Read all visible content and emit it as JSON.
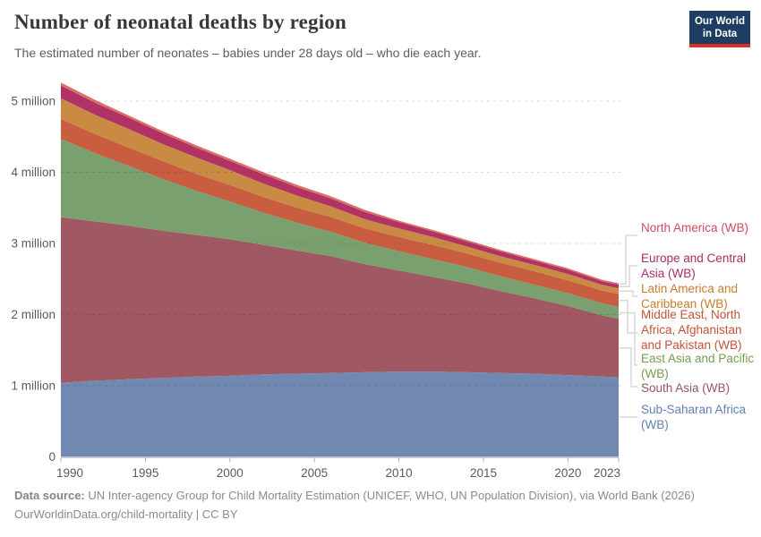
{
  "header": {
    "title": "Number of neonatal deaths by region",
    "subtitle": "The estimated number of neonates – babies under 28 days old – who die each year.",
    "logo": {
      "line1": "Our World",
      "line2": "in Data",
      "bg_color": "#1d3d63",
      "accent_color": "#dc2e27"
    }
  },
  "footer": {
    "source_prefix": "Data source:",
    "source_text": " UN Inter-agency Group for Child Mortality Estimation (UNICEF, WHO, UN Population Division), via World Bank (2026)",
    "license_line": "OurWorldinData.org/child-mortality | CC BY"
  },
  "chart_data": {
    "type": "area",
    "stacked": true,
    "title": "Number of neonatal deaths by region",
    "unit": "deaths per year (millions)",
    "grid": "dashed horizontal",
    "legend_position": "right",
    "xlim": [
      1990,
      2023
    ],
    "ylim": [
      0,
      5.3
    ],
    "x": [
      1990,
      1992,
      1994,
      1996,
      1998,
      2000,
      2002,
      2004,
      2006,
      2008,
      2010,
      2012,
      2014,
      2016,
      2018,
      2020,
      2022,
      2023
    ],
    "series": [
      {
        "key": "ssa",
        "label": "Sub-Saharan Africa (WB)",
        "color": "#7189b0",
        "label_color": "#6380af",
        "values": [
          1.04,
          1.07,
          1.09,
          1.11,
          1.13,
          1.14,
          1.16,
          1.17,
          1.18,
          1.19,
          1.2,
          1.2,
          1.19,
          1.18,
          1.17,
          1.15,
          1.13,
          1.12
        ]
      },
      {
        "key": "sa",
        "label": "South Asia (WB)",
        "color": "#a05862",
        "label_color": "#985460",
        "values": [
          2.33,
          2.24,
          2.16,
          2.07,
          1.99,
          1.92,
          1.82,
          1.73,
          1.64,
          1.52,
          1.42,
          1.33,
          1.25,
          1.15,
          1.06,
          0.97,
          0.86,
          0.82
        ]
      },
      {
        "key": "eap",
        "label": "East Asia and Pacific (WB)",
        "color": "#7ba06f",
        "label_color": "#769d54",
        "values": [
          1.1,
          0.96,
          0.84,
          0.73,
          0.62,
          0.53,
          0.45,
          0.39,
          0.34,
          0.3,
          0.27,
          0.25,
          0.23,
          0.21,
          0.19,
          0.18,
          0.17,
          0.17
        ]
      },
      {
        "key": "me",
        "label": "Middle East, North Africa, Afghanistan and Pakistan (WB)",
        "color": "#c85d40",
        "label_color": "#c35438",
        "values": [
          0.28,
          0.27,
          0.26,
          0.25,
          0.24,
          0.23,
          0.22,
          0.21,
          0.21,
          0.2,
          0.2,
          0.2,
          0.19,
          0.19,
          0.19,
          0.18,
          0.18,
          0.18
        ]
      },
      {
        "key": "lac",
        "label": "Latin America and Caribbean (WB)",
        "color": "#c98b43",
        "label_color": "#c67d2e",
        "values": [
          0.29,
          0.27,
          0.26,
          0.24,
          0.23,
          0.21,
          0.19,
          0.17,
          0.15,
          0.13,
          0.12,
          0.11,
          0.1,
          0.09,
          0.09,
          0.09,
          0.08,
          0.08
        ]
      },
      {
        "key": "eca",
        "label": "Europe and Central Asia (WB)",
        "color": "#b13366",
        "label_color": "#aa2d60",
        "values": [
          0.18,
          0.17,
          0.16,
          0.15,
          0.14,
          0.13,
          0.13,
          0.12,
          0.11,
          0.1,
          0.09,
          0.08,
          0.07,
          0.07,
          0.06,
          0.06,
          0.05,
          0.05
        ]
      },
      {
        "key": "na",
        "label": "North America (WB)",
        "color": "#dc6f62",
        "label_color": "#cf4b60",
        "values": [
          0.04,
          0.04,
          0.03,
          0.03,
          0.03,
          0.03,
          0.03,
          0.03,
          0.03,
          0.03,
          0.02,
          0.02,
          0.02,
          0.02,
          0.02,
          0.02,
          0.02,
          0.02
        ]
      }
    ],
    "yticks": [
      {
        "value": 0,
        "label": "0"
      },
      {
        "value": 1,
        "label": "1 million"
      },
      {
        "value": 2,
        "label": "2 million"
      },
      {
        "value": 3,
        "label": "3 million"
      },
      {
        "value": 4,
        "label": "4 million"
      },
      {
        "value": 5,
        "label": "5 million"
      }
    ],
    "xticks": [
      {
        "value": 1990,
        "label": "1990"
      },
      {
        "value": 1995,
        "label": "1995"
      },
      {
        "value": 2000,
        "label": "2000"
      },
      {
        "value": 2005,
        "label": "2005"
      },
      {
        "value": 2010,
        "label": "2010"
      },
      {
        "value": 2015,
        "label": "2015"
      },
      {
        "value": 2020,
        "label": "2020"
      },
      {
        "value": 2023,
        "label": "2023"
      }
    ]
  }
}
